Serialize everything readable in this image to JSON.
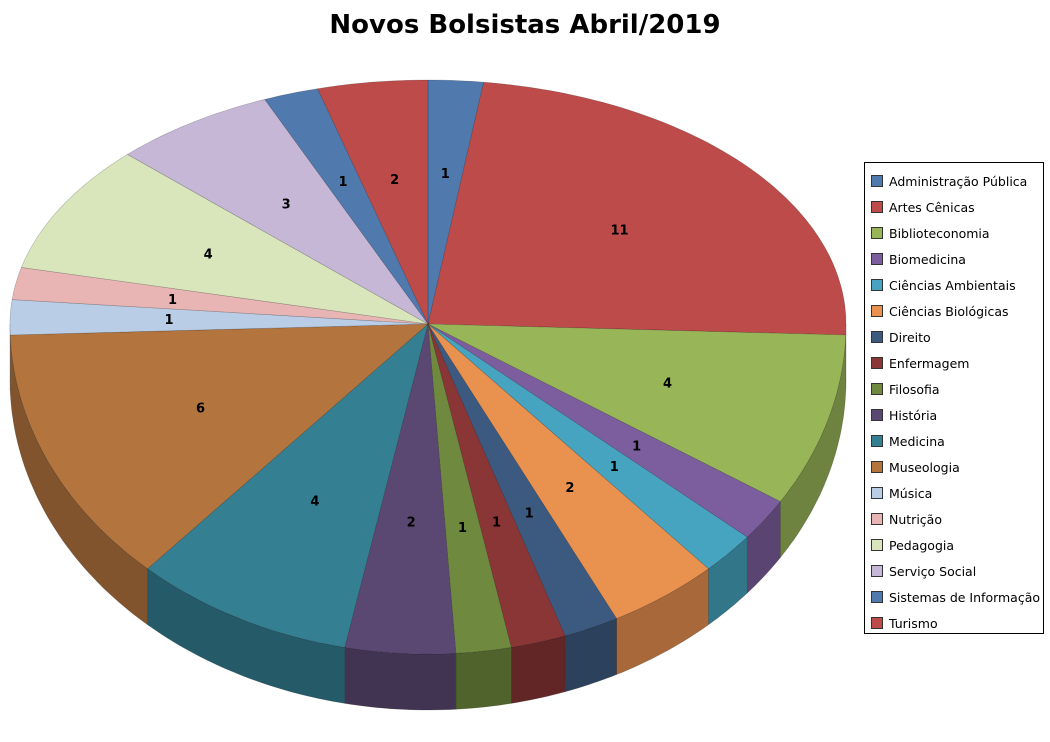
{
  "chart_data": {
    "type": "pie",
    "style": "3d",
    "title": "Novos Bolsistas Abril/2019",
    "legend_position": "right",
    "categories": [
      "Administração Pública",
      "Artes Cênicas",
      "Biblioteconomia",
      "Biomedicina",
      "Ciências Ambientais",
      "Ciências Biológicas",
      "Direito",
      "Enfermagem",
      "Filosofia",
      "História",
      "Medicina",
      "Museologia",
      "Música",
      "Nutrição",
      "Pedagogia",
      "Serviço Social",
      "Sistemas de Informação",
      "Turismo"
    ],
    "values": [
      1,
      11,
      4,
      1,
      1,
      2,
      1,
      1,
      1,
      2,
      4,
      6,
      1,
      1,
      4,
      3,
      1,
      2
    ],
    "colors": [
      "#5079AE",
      "#BC4B4A",
      "#98B657",
      "#7C5E9E",
      "#46A4C0",
      "#E9914F",
      "#3C5A80",
      "#8A3536",
      "#6F8A3F",
      "#5A4873",
      "#347F92",
      "#B3743E",
      "#B9CDE6",
      "#E8B5B4",
      "#D9E6BC",
      "#C6B7D7",
      "#5079AE",
      "#BC4B4A"
    ]
  }
}
